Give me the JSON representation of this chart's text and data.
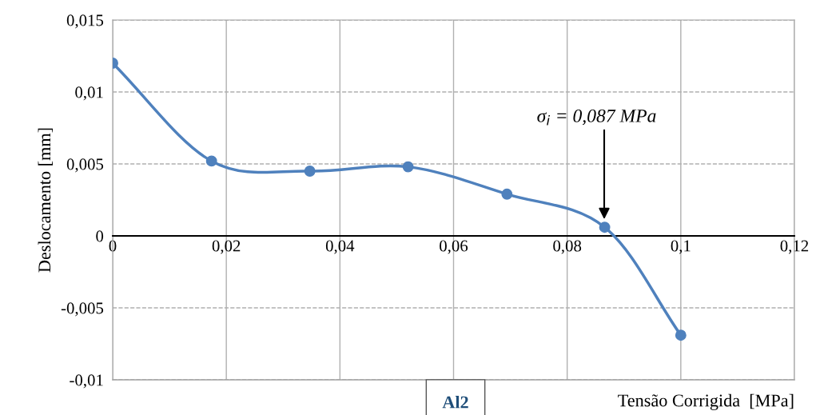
{
  "chart_data": {
    "type": "line",
    "xlabel": "Tensão Corrigida  [MPa]",
    "ylabel": "Deslocamento [mm]",
    "x": [
      0,
      0.0174,
      0.0347,
      0.052,
      0.0694,
      0.0866,
      0.1
    ],
    "series": [
      {
        "color": "#4f81bd",
        "values": [
          0.012,
          0.0052,
          0.0045,
          0.0048,
          0.0029,
          0.0006,
          -0.0069
        ]
      }
    ],
    "xlim": [
      0,
      0.12
    ],
    "ylim": [
      -0.01,
      0.015
    ],
    "xticks": [
      0,
      {
        "value": 0.02,
        "label": "0,02"
      },
      {
        "value": 0.04,
        "label": "0,04"
      },
      {
        "value": 0.06,
        "label": "0,06"
      },
      {
        "value": 0.08,
        "label": "0,08"
      },
      {
        "value": 0.1,
        "label": "0,1"
      },
      {
        "value": 0.12,
        "label": "0,12"
      }
    ],
    "yticks": [
      {
        "value": -0.01,
        "label": "-0,01"
      },
      {
        "value": -0.005,
        "label": "-0,005"
      },
      0,
      {
        "value": 0.005,
        "label": "0,005"
      },
      {
        "value": 0.01,
        "label": "0,01"
      },
      {
        "value": 0.015,
        "label": "0,015"
      }
    ],
    "annotations": [
      "σ$_{i}$ = 0,087 MPa",
      "Al2"
    ],
    "grid": true,
    "marker": "circle",
    "line_style": "solid",
    "legend": false
  }
}
